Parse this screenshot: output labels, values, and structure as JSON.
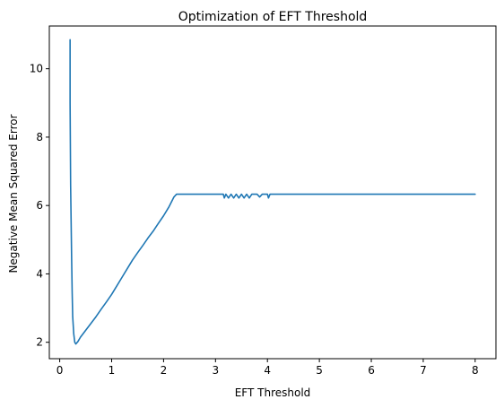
{
  "chart_data": {
    "type": "line",
    "title": "Optimization of EFT Threshold",
    "xlabel": "EFT Threshold",
    "ylabel": "Negative Mean Squared Error",
    "xlim": [
      -0.2,
      8.4
    ],
    "ylim": [
      1.52,
      11.25
    ],
    "xticks": [
      0,
      1,
      2,
      3,
      4,
      5,
      6,
      7,
      8
    ],
    "yticks": [
      2,
      4,
      6,
      8,
      10
    ],
    "grid": false,
    "legend": "none",
    "series": [
      {
        "color": "#1f77b4",
        "x": [
          0.2,
          0.2,
          0.21,
          0.22,
          0.23,
          0.24,
          0.25,
          0.27,
          0.29,
          0.31,
          0.35,
          0.4,
          0.5,
          0.6,
          0.7,
          0.8,
          0.9,
          1.0,
          1.1,
          1.2,
          1.3,
          1.4,
          1.5,
          1.6,
          1.7,
          1.8,
          1.9,
          2.0,
          2.1,
          2.2,
          2.25,
          2.5,
          3.0,
          3.15,
          3.17,
          3.2,
          3.25,
          3.3,
          3.35,
          3.4,
          3.45,
          3.5,
          3.55,
          3.6,
          3.65,
          3.7,
          3.75,
          3.8,
          3.85,
          3.9,
          3.95,
          4.0,
          4.02,
          4.05,
          4.1,
          4.5,
          5.0,
          6.0,
          7.0,
          8.0
        ],
        "y": [
          10.85,
          9.0,
          6.6,
          5.5,
          4.4,
          3.45,
          2.75,
          2.25,
          2.0,
          1.95,
          2.02,
          2.15,
          2.35,
          2.55,
          2.75,
          2.97,
          3.18,
          3.4,
          3.65,
          3.9,
          4.15,
          4.4,
          4.62,
          4.83,
          5.05,
          5.25,
          5.48,
          5.7,
          5.95,
          6.25,
          6.33,
          6.33,
          6.33,
          6.33,
          6.22,
          6.33,
          6.22,
          6.33,
          6.22,
          6.33,
          6.22,
          6.33,
          6.22,
          6.33,
          6.22,
          6.33,
          6.33,
          6.33,
          6.25,
          6.33,
          6.33,
          6.33,
          6.22,
          6.33,
          6.33,
          6.33,
          6.33,
          6.33,
          6.33,
          6.33
        ]
      }
    ]
  }
}
